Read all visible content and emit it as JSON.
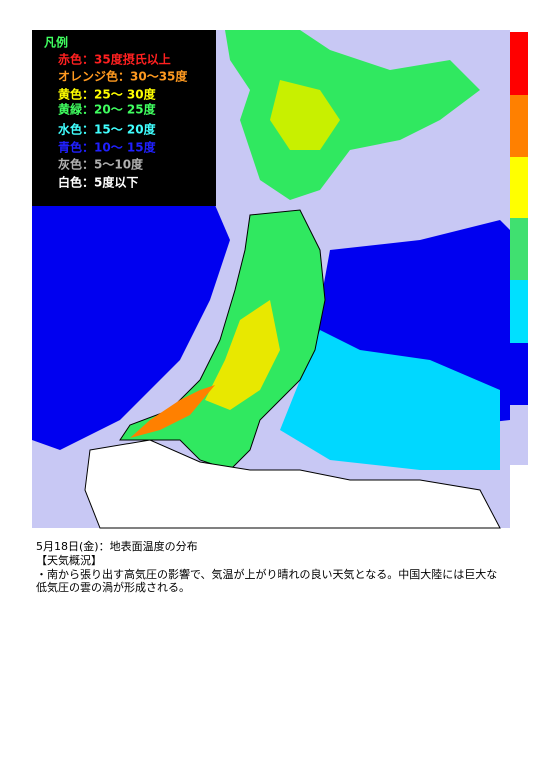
{
  "legend": {
    "title": "凡例",
    "items": [
      {
        "text": "赤色：35度摂氏以上",
        "color": "#ff2020"
      },
      {
        "text": "オレンジ色：30〜35度",
        "color": "#ff9a20"
      },
      {
        "text": "黄色：25〜 30度",
        "color": "#ffff00"
      },
      {
        "text": "黄緑：20〜 25度",
        "color": "#40ff60"
      },
      {
        "text": "水色：15〜 20度",
        "color": "#40ffff"
      },
      {
        "text": "青色：10〜 15度",
        "color": "#2020ff"
      },
      {
        "text": "灰色：5〜10度",
        "color": "#b0b0b0"
      },
      {
        "text": "白色：5度以下",
        "color": "#ffffff"
      }
    ]
  },
  "caption": {
    "date": "5月18日(金)：地表面温度の分布",
    "heading": "【天気概況】",
    "body": "・南から張り出す高気圧の影響で、気温が上がり晴れの良い天気となる。中国大陸には巨大な低気圧の雲の渦が形成される。"
  }
}
